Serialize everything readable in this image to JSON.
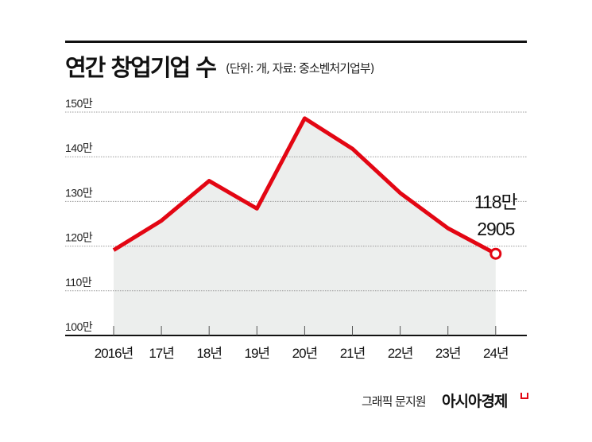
{
  "chart_data": {
    "type": "area",
    "title": "연간 창업기업 수",
    "subtitle": "(단위: 개, 자료: 중소벤처기업부)",
    "categories": [
      "2016년",
      "17년",
      "18년",
      "19년",
      "20년",
      "21년",
      "22년",
      "23년",
      "24년"
    ],
    "values": [
      1191000,
      1257000,
      1346000,
      1284000,
      1486000,
      1418000,
      1319000,
      1240000,
      1182905
    ],
    "yticks": [
      "100만",
      "110만",
      "120만",
      "130만",
      "140만",
      "150만"
    ],
    "ylim": [
      1000000,
      1500000
    ],
    "grid": true,
    "annotation": {
      "line1": "118만",
      "line2": "2905"
    },
    "colors": {
      "line": "#e30613",
      "fill": "#eceeed",
      "grid": "#999999"
    }
  },
  "footer": {
    "credit": "그래픽 문지원",
    "logo": "아시아경제"
  }
}
